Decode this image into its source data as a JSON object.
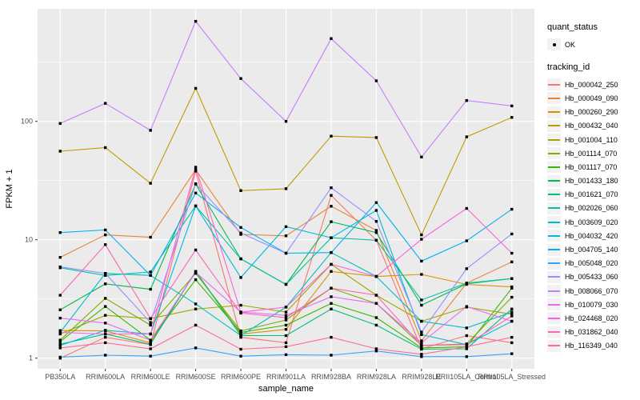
{
  "y_axis": {
    "label": "FPKM + 1",
    "tick_labels": [
      "1",
      "10",
      "100"
    ]
  },
  "x_axis": {
    "label": "sample_name"
  },
  "legend": {
    "quant_status": {
      "title": "quant_status",
      "items": [
        {
          "label": "OK",
          "marker": "point",
          "color": "#000000"
        }
      ]
    },
    "tracking_id": {
      "title": "tracking_id"
    }
  },
  "chart_data": {
    "type": "line",
    "x_categories": [
      "PB350LA",
      "RRIM600LA",
      "RRIM600LE",
      "RRIM600SE",
      "RRIM600PE",
      "RRIM901LA",
      "RRIM928BA",
      "RRIM928LA",
      "RRIM928LE",
      "RRII105LA_Control",
      "RRII105LA_Stressed"
    ],
    "xlabel": "sample_name",
    "ylabel": "FPKM + 1",
    "y_scale": "log10",
    "y_ticks": [
      1,
      10,
      100
    ],
    "y_minor_ticks": [
      3.162,
      31.62,
      316.2
    ],
    "ylim": [
      0.81,
      890
    ],
    "grid": true,
    "panel_bg": "#EBEBEB",
    "grid_color": "#FFFFFF",
    "point_color": "#000000",
    "legend_position": "right",
    "quant_status_all": "OK",
    "series": [
      {
        "name": "Hb_000042_250",
        "color": "#F8766D",
        "values": [
          1.0,
          1.5,
          1.3,
          38,
          1.5,
          1.35,
          23.7,
          9.9,
          1.2,
          1.55,
          1.35
        ]
      },
      {
        "name": "Hb_000049_090",
        "color": "#EA8331",
        "values": [
          7.1,
          11.0,
          10.5,
          39,
          11.1,
          10.8,
          19.2,
          12.0,
          1.4,
          4.3,
          6.5
        ]
      },
      {
        "name": "Hb_000260_290",
        "color": "#D89000",
        "values": [
          1.71,
          1.7,
          1.35,
          5.4,
          1.6,
          1.75,
          5.4,
          4.9,
          5.1,
          4.2,
          4.0
        ]
      },
      {
        "name": "Hb_000432_040",
        "color": "#C09B00",
        "values": [
          56,
          60,
          30,
          190,
          26,
          27,
          75,
          73,
          11,
          74,
          108
        ]
      },
      {
        "name": "Hb_001004_110",
        "color": "#A3A500",
        "values": [
          1.6,
          2.3,
          2.16,
          2.6,
          2.8,
          2.45,
          6.2,
          3.4,
          2.05,
          2.7,
          2.35
        ]
      },
      {
        "name": "Hb_001114_070",
        "color": "#7CAE00",
        "values": [
          1.42,
          3.2,
          1.9,
          5.2,
          1.7,
          2.1,
          3.9,
          2.9,
          1.28,
          1.32,
          3.27
        ]
      },
      {
        "name": "Hb_001117_070",
        "color": "#39B600",
        "values": [
          1.38,
          2.73,
          1.42,
          4.6,
          1.65,
          1.9,
          2.9,
          2.2,
          1.22,
          1.25,
          3.9
        ]
      },
      {
        "name": "Hb_001433_180",
        "color": "#00BB4E",
        "values": [
          2.56,
          4.24,
          3.82,
          29.5,
          6.9,
          4.2,
          14.2,
          11.5,
          2.8,
          4.25,
          4.7
        ]
      },
      {
        "name": "Hb_001621_070",
        "color": "#00BF7D",
        "values": [
          1.31,
          1.6,
          1.31,
          5.4,
          1.55,
          1.55,
          2.6,
          1.9,
          1.19,
          1.2,
          2.6
        ]
      },
      {
        "name": "Hb_002026_060",
        "color": "#00C1A3",
        "values": [
          5.8,
          5.0,
          5.35,
          19.3,
          6.9,
          4.2,
          10.4,
          9.9,
          3.1,
          4.3,
          4.7
        ]
      },
      {
        "name": "Hb_003609_020",
        "color": "#00BFC4",
        "values": [
          1.65,
          5.2,
          5.0,
          2.87,
          1.55,
          2.7,
          7.8,
          4.9,
          2.05,
          1.8,
          2.45
        ]
      },
      {
        "name": "Hb_004032_420",
        "color": "#00BADE",
        "values": [
          1.28,
          1.72,
          1.6,
          19.3,
          4.8,
          12.9,
          10.4,
          17.7,
          1.58,
          1.3,
          2.05
        ]
      },
      {
        "name": "Hb_004705_140",
        "color": "#00B0F6",
        "values": [
          11.5,
          12.1,
          5.0,
          24.8,
          12.7,
          7.7,
          7.8,
          20.6,
          6.6,
          9.8,
          18.1
        ]
      },
      {
        "name": "Hb_005048_020",
        "color": "#35A2FF",
        "values": [
          1.02,
          1.06,
          1.04,
          1.22,
          1.04,
          1.07,
          1.06,
          1.15,
          1.03,
          1.03,
          1.09
        ]
      },
      {
        "name": "Hb_005433_060",
        "color": "#9590FF",
        "values": [
          5.9,
          5.2,
          2.0,
          29.7,
          11.4,
          7.7,
          27.5,
          14.3,
          1.66,
          5.7,
          11.2
        ]
      },
      {
        "name": "Hb_008066_070",
        "color": "#C77CFF",
        "values": [
          96,
          142,
          84,
          700,
          230,
          100,
          500,
          220,
          50,
          150,
          135
        ]
      },
      {
        "name": "Hb_010079_030",
        "color": "#E76BF3",
        "values": [
          2.18,
          1.98,
          1.42,
          5.3,
          2.45,
          2.3,
          3.3,
          2.9,
          1.35,
          2.73,
          2.05
        ]
      },
      {
        "name": "Hb_024468_020",
        "color": "#FA62DB",
        "values": [
          1.65,
          1.6,
          1.6,
          41,
          2.45,
          2.7,
          6.2,
          4.9,
          10.1,
          18.4,
          7.7
        ]
      },
      {
        "name": "Hb_031862_040",
        "color": "#FF62BC",
        "values": [
          3.4,
          9.1,
          2.16,
          8.2,
          2.4,
          2.2,
          3.9,
          3.4,
          1.28,
          1.3,
          2.27
        ]
      },
      {
        "name": "Hb_116349_040",
        "color": "#FF6A98",
        "values": [
          1.22,
          1.35,
          1.2,
          1.9,
          1.19,
          1.25,
          1.5,
          1.2,
          1.08,
          1.25,
          1.5
        ]
      }
    ]
  }
}
